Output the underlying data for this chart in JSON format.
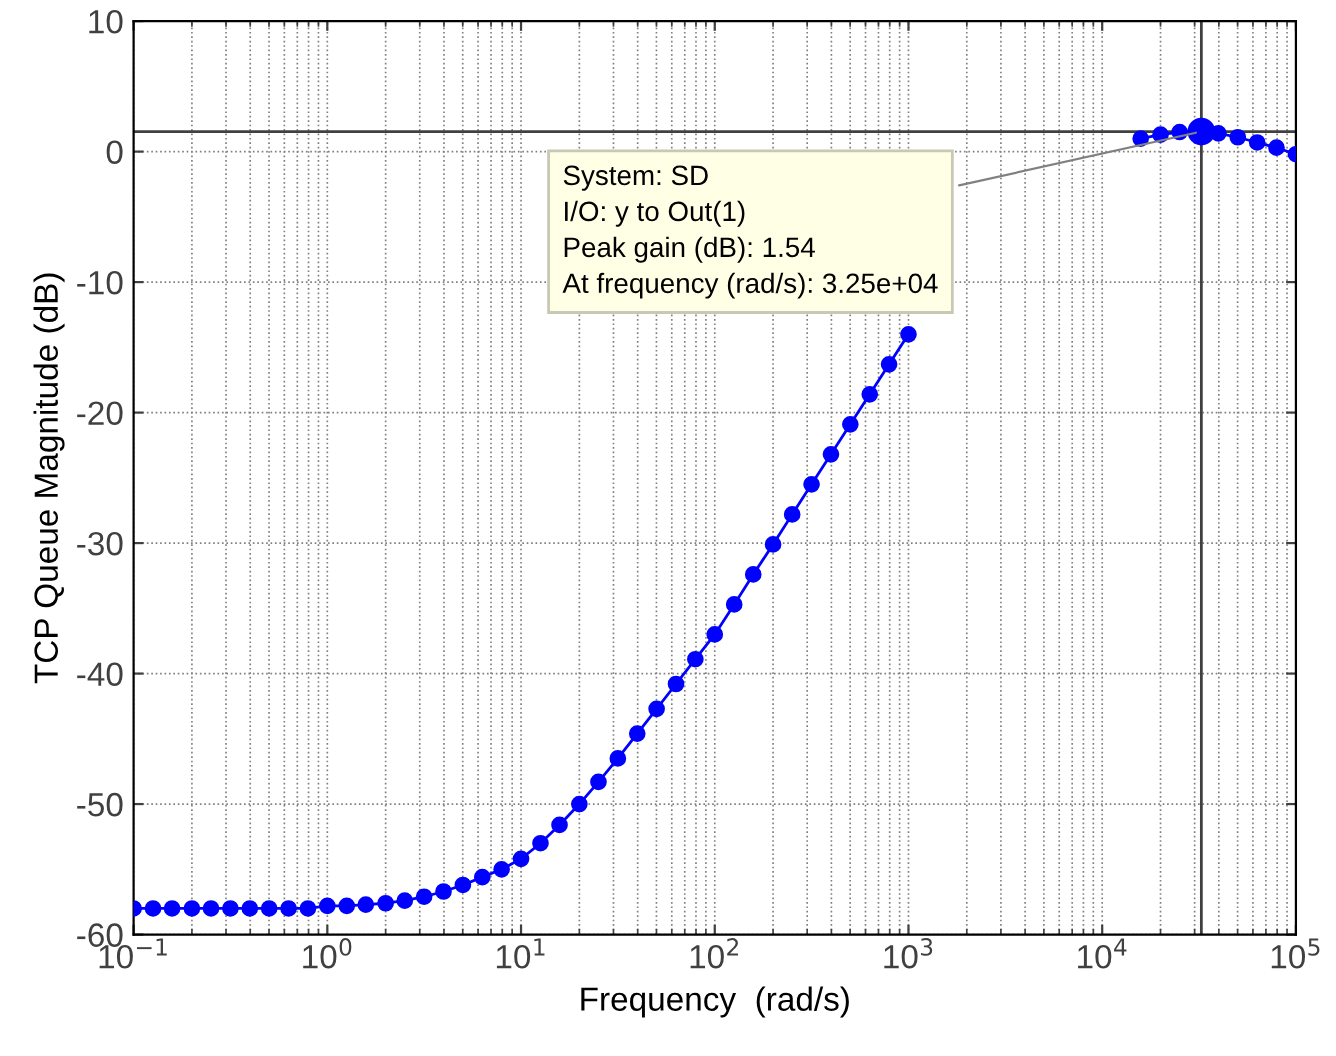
{
  "chart_data": {
    "type": "line",
    "xlabel": "Frequency  (rad/s)",
    "ylabel": "TCP Queue Magnitude (dB)",
    "log": "x",
    "x": [
      0.1,
      0.126,
      0.158,
      0.2,
      0.251,
      0.316,
      0.398,
      0.501,
      0.631,
      0.794,
      1,
      1.26,
      1.58,
      2,
      2.51,
      3.16,
      3.98,
      5.01,
      6.31,
      7.94,
      10,
      12.6,
      15.8,
      20,
      25.1,
      31.6,
      39.8,
      50.1,
      63.1,
      79.4,
      100,
      126,
      158,
      200,
      251,
      316,
      398,
      501,
      631,
      794,
      1000,
      1260,
      1580,
      2000,
      2510,
      3160,
      3980,
      5010,
      6310,
      7940,
      10000,
      12600,
      15800,
      20000,
      25100,
      32500,
      39800,
      50100,
      63100,
      79400,
      100000
    ],
    "series": [
      {
        "color": "#0000ff",
        "values": [
          -58,
          -58,
          -58,
          -58,
          -58,
          -58,
          -58,
          -58,
          -58,
          -58,
          -57.8,
          -57.8,
          -57.7,
          -57.6,
          -57.4,
          -57.1,
          -56.7,
          -56.2,
          -55.6,
          -55.0,
          -54.2,
          -53.0,
          -51.6,
          -50.0,
          -48.3,
          -46.5,
          -44.6,
          -42.7,
          -40.8,
          -38.9,
          -37.0,
          -34.7,
          -32.4,
          -30.1,
          -27.8,
          -25.5,
          -23.2,
          -20.9,
          -18.6,
          -16.3,
          -14.0,
          null,
          null,
          null,
          null,
          null,
          null,
          null,
          null,
          null,
          null,
          null,
          1.0,
          1.3,
          1.5,
          1.54,
          1.4,
          1.1,
          0.7,
          0.3,
          -0.2
        ]
      }
    ],
    "xlim": [
      0.1,
      100000
    ],
    "xticks": [
      {
        "value": 0.1,
        "label": "10$^{−1}$"
      },
      {
        "value": 1,
        "label": "10$^{0}$"
      },
      {
        "value": 10,
        "label": "10$^{1}$"
      },
      {
        "value": 100,
        "label": "10$^{2}$"
      },
      {
        "value": 1000,
        "label": "10$^{3}$"
      },
      {
        "value": 10000,
        "label": "10$^{4}$"
      },
      {
        "value": 100000,
        "label": "10$^{5}$"
      }
    ],
    "ylim": [
      -60,
      10
    ],
    "yticks": [
      -60,
      -50,
      -40,
      -30,
      -20,
      -10,
      0,
      10
    ],
    "grid": true,
    "marker": "circle",
    "line_style": "solid",
    "ref_lines": [
      {
        "axis": "y",
        "value": 1.54,
        "color": "#404040"
      },
      {
        "axis": "x",
        "value": 32500,
        "color": "#404040"
      }
    ],
    "annotations": [
      {
        "text": "System: SD\nI/O: y to Out(1)\nPeak gain (dB): 1.54\nAt frequency (rad/s): 3.25e+04",
        "x": 32500,
        "y": 1.54
      }
    ]
  }
}
